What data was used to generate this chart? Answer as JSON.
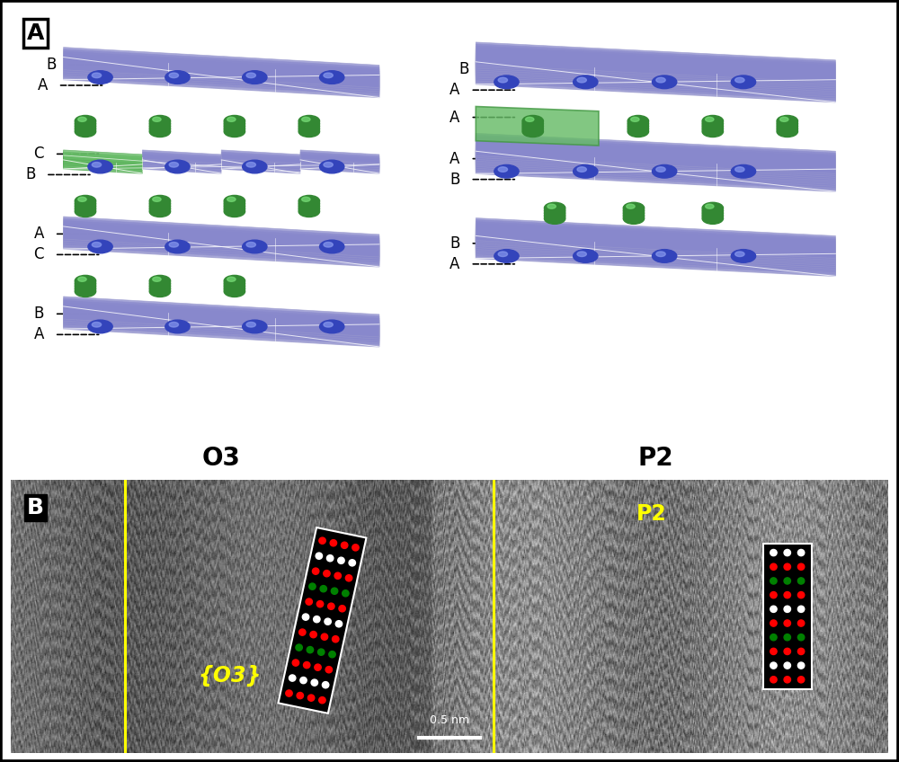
{
  "panel_A_label": "A",
  "panel_B_label": "B",
  "o3_label": "O3",
  "p2_label": "P2",
  "o3_annotation": "{O3}",
  "p2_annotation": "P2",
  "scale_bar_text": "0.5 nm",
  "fig_width": 10.0,
  "fig_height": 8.48,
  "bg_color": "#ffffff",
  "border_color": "#000000",
  "blue_plate_color": "#8888cc",
  "green_ion_color": "#44aa44",
  "green_plate_color": "#66bb66",
  "yellow_line_color": "#ffff00"
}
